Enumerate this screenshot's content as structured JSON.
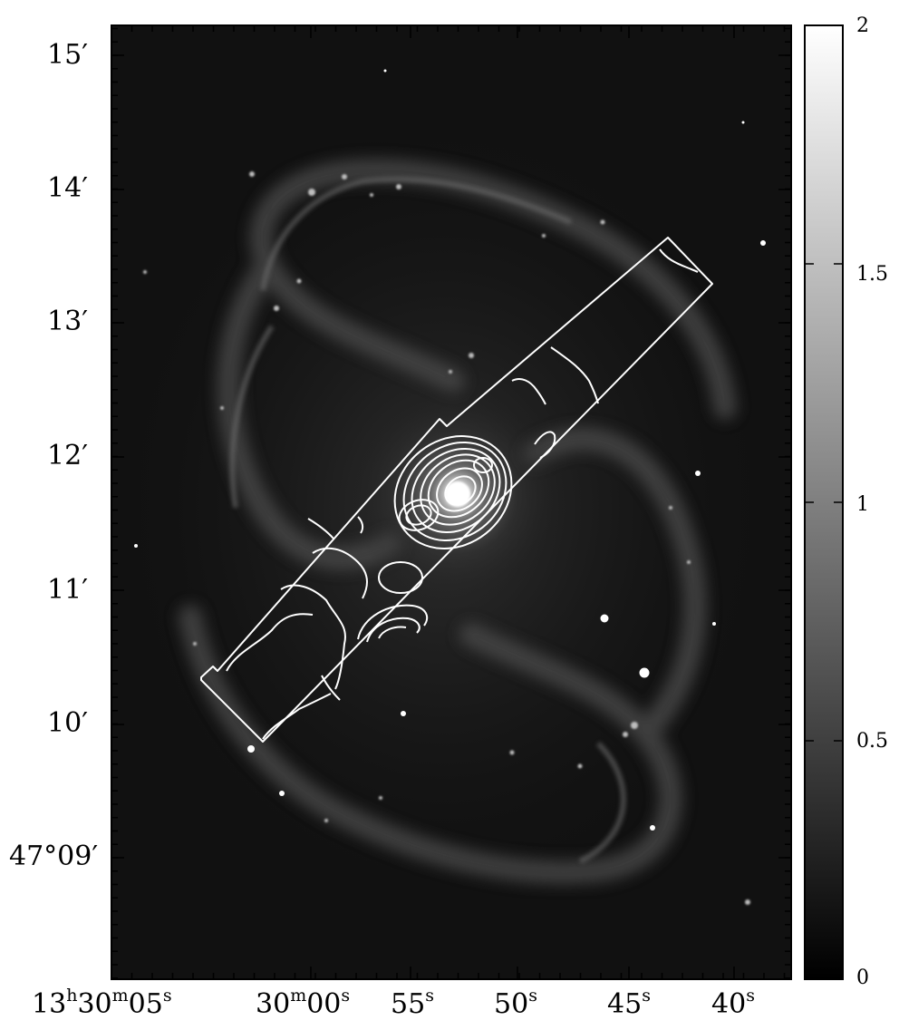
{
  "image": {
    "subject": "spiral-galaxy",
    "colormap": "greyscale"
  },
  "axes": {
    "dec_ticks": [
      {
        "main": "15",
        "sec": "′"
      },
      {
        "main": "14",
        "sec": "′"
      },
      {
        "main": "13",
        "sec": "′"
      },
      {
        "main": "12",
        "sec": "′"
      },
      {
        "main": "11",
        "sec": "′"
      },
      {
        "main": "10",
        "sec": "′"
      },
      {
        "main": "47°09",
        "sec": "′"
      }
    ],
    "ra_ticks": [
      {
        "parts": [
          "13",
          "h",
          "30",
          "m",
          "05",
          "s"
        ]
      },
      {
        "parts": [
          "30",
          "m",
          "00",
          "s"
        ]
      },
      {
        "parts": [
          "55",
          "s"
        ]
      },
      {
        "parts": [
          "50",
          "s"
        ]
      },
      {
        "parts": [
          "45",
          "s"
        ]
      },
      {
        "parts": [
          "40",
          "s"
        ]
      }
    ]
  },
  "colorbar": {
    "ticks": [
      "2",
      "1.5",
      "1",
      "0.5",
      "0"
    ],
    "range": [
      0,
      2
    ],
    "colors": {
      "top": "#ffffff",
      "bottom": "#000000"
    }
  },
  "overlay": {
    "color": "#ffffff",
    "slit_region": "rectangular-strip",
    "contours": "emission-contours"
  }
}
